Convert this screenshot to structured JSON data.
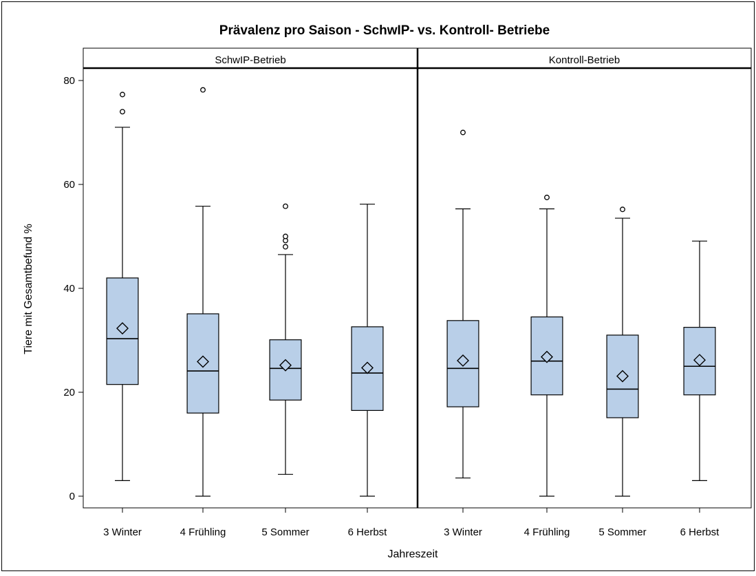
{
  "chart_data": {
    "type": "box",
    "title": "Prävalenz pro Saison - SchwIP- vs. Kontroll- Betriebe",
    "xlabel": "Jahreszeit",
    "ylabel": "Tiere mit Gesamtbefund %",
    "ylim": [
      -2,
      83
    ],
    "yticks": [
      0,
      20,
      40,
      60,
      80
    ],
    "grid": false,
    "colors": {
      "box_fill": "#b9cfe8",
      "stroke": "#000000",
      "frame": "#000000"
    },
    "panels": [
      {
        "name": "SchwIP-Betrieb",
        "categories": [
          "3 Winter",
          "4 Frühling",
          "5 Sommer",
          "6 Herbst"
        ],
        "boxes": [
          {
            "min": 3,
            "q1": 21.5,
            "median": 30.3,
            "q3": 42.0,
            "max": 71.0,
            "mean": 32.3,
            "outliers": [
              74,
              77.3
            ]
          },
          {
            "min": 0,
            "q1": 16.0,
            "median": 24.1,
            "q3": 35.1,
            "max": 55.8,
            "mean": 25.9,
            "outliers": [
              78.2
            ]
          },
          {
            "min": 4.2,
            "q1": 18.5,
            "median": 24.6,
            "q3": 30.1,
            "max": 46.5,
            "mean": 25.2,
            "outliers": [
              48,
              49.2,
              50,
              55.8
            ]
          },
          {
            "min": 0,
            "q1": 16.5,
            "median": 23.7,
            "q3": 32.6,
            "max": 56.2,
            "mean": 24.7,
            "outliers": []
          }
        ]
      },
      {
        "name": "Kontroll-Betrieb",
        "categories": [
          "3 Winter",
          "4 Frühling",
          "5 Sommer",
          "6 Herbst"
        ],
        "boxes": [
          {
            "min": 3.5,
            "q1": 17.2,
            "median": 24.6,
            "q3": 33.8,
            "max": 55.3,
            "mean": 26.1,
            "outliers": [
              70
            ]
          },
          {
            "min": 0,
            "q1": 19.5,
            "median": 26.0,
            "q3": 34.5,
            "max": 55.3,
            "mean": 26.8,
            "outliers": [
              57.5
            ]
          },
          {
            "min": 0,
            "q1": 15.1,
            "median": 20.6,
            "q3": 31.0,
            "max": 53.5,
            "mean": 23.1,
            "outliers": [
              55.2
            ]
          },
          {
            "min": 3,
            "q1": 19.5,
            "median": 25.0,
            "q3": 32.5,
            "max": 49.1,
            "mean": 26.2,
            "outliers": []
          }
        ]
      }
    ]
  }
}
